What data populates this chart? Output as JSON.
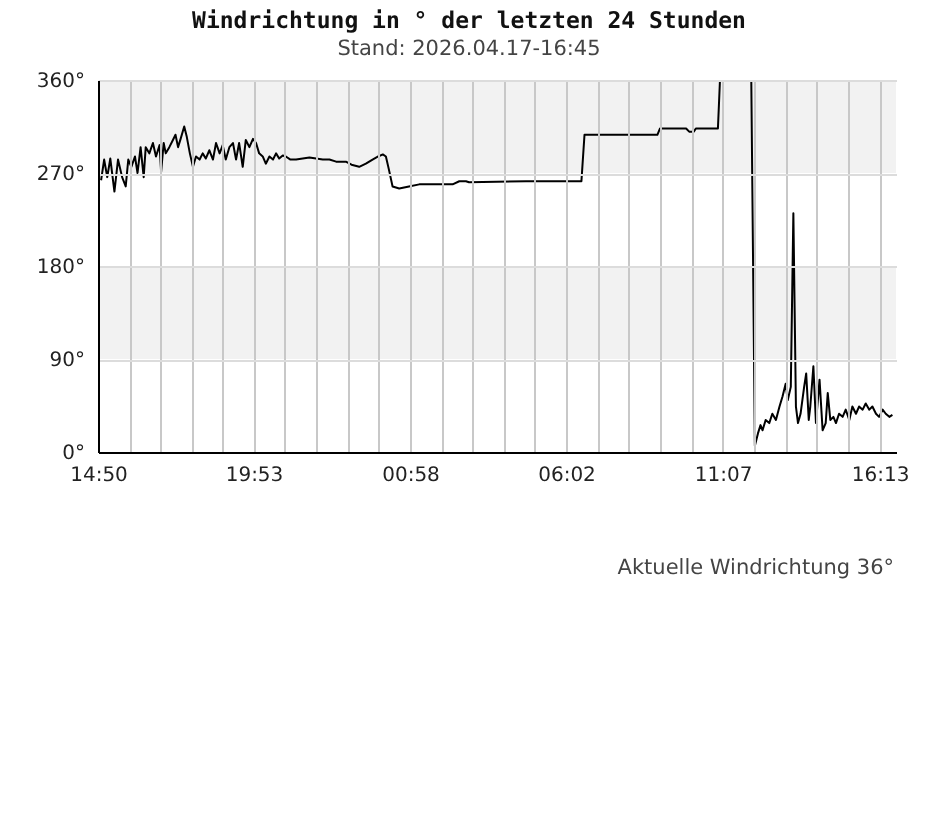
{
  "chart_data": {
    "type": "line",
    "title": "Windrichtung in ° der letzten 24 Stunden",
    "subtitle": "Stand: 2026.04.17-16:45",
    "annotations": [
      "Aktuelle Windrichtung 36°"
    ],
    "xlim": [
      "2026-04-16T14:50",
      "2026-04-17T16:45"
    ],
    "xticks": [
      {
        "value": "2026-04-16T14:50",
        "label": "14:50"
      },
      {
        "value": "2026-04-16T15:51",
        "label": null
      },
      {
        "value": "2026-04-16T16:51",
        "label": null
      },
      {
        "value": "2026-04-16T17:52",
        "label": null
      },
      {
        "value": "2026-04-16T18:52",
        "label": null
      },
      {
        "value": "2026-04-16T19:53",
        "label": "19:53"
      },
      {
        "value": "2026-04-16T20:54",
        "label": null
      },
      {
        "value": "2026-04-16T21:55",
        "label": null
      },
      {
        "value": "2026-04-16T22:56",
        "label": null
      },
      {
        "value": "2026-04-16T23:57",
        "label": null
      },
      {
        "value": "2026-04-17T00:58",
        "label": "00:58"
      },
      {
        "value": "2026-04-17T01:59",
        "label": null
      },
      {
        "value": "2026-04-17T02:59",
        "label": null
      },
      {
        "value": "2026-04-17T04:01",
        "label": null
      },
      {
        "value": "2026-04-17T05:01",
        "label": null
      },
      {
        "value": "2026-04-17T06:02",
        "label": "06:02"
      },
      {
        "value": "2026-04-17T07:03",
        "label": null
      },
      {
        "value": "2026-04-17T08:04",
        "label": null
      },
      {
        "value": "2026-04-17T09:05",
        "label": null
      },
      {
        "value": "2026-04-17T10:06",
        "label": null
      },
      {
        "value": "2026-04-17T11:07",
        "label": "11:07"
      },
      {
        "value": "2026-04-17T12:08",
        "label": null
      },
      {
        "value": "2026-04-17T13:10",
        "label": null
      },
      {
        "value": "2026-04-17T14:11",
        "label": null
      },
      {
        "value": "2026-04-17T15:12",
        "label": null
      },
      {
        "value": "2026-04-17T16:13",
        "label": "16:13"
      }
    ],
    "ylim": [
      0,
      360
    ],
    "yticks": [
      {
        "value": 0,
        "label": "0°"
      },
      {
        "value": 90,
        "label": "90°"
      },
      {
        "value": 180,
        "label": "180°"
      },
      {
        "value": 270,
        "label": "270°"
      },
      {
        "value": 360,
        "label": "360°"
      }
    ],
    "grid": true,
    "bands": [
      {
        "axis": "y",
        "from": 90,
        "to": 180,
        "color": "#f2f2f2"
      },
      {
        "axis": "y",
        "from": 270,
        "to": 360,
        "color": "#f2f2f2"
      }
    ],
    "x": [
      "2026-04-16T14:56",
      "2026-04-16T15:02",
      "2026-04-16T15:08",
      "2026-04-16T15:14",
      "2026-04-16T15:22",
      "2026-04-16T15:29",
      "2026-04-16T15:37",
      "2026-04-16T15:44",
      "2026-04-16T15:49",
      "2026-04-16T15:55",
      "2026-04-16T16:02",
      "2026-04-16T16:07",
      "2026-04-16T16:13",
      "2026-04-16T16:19",
      "2026-04-16T16:23",
      "2026-04-16T16:30",
      "2026-04-16T16:37",
      "2026-04-16T16:43",
      "2026-04-16T16:50",
      "2026-04-16T16:53",
      "2026-04-16T16:58",
      "2026-04-16T17:02",
      "2026-04-16T17:09",
      "2026-04-16T17:16",
      "2026-04-16T17:21",
      "2026-04-16T17:26",
      "2026-04-16T17:31",
      "2026-04-16T17:38",
      "2026-04-16T17:43",
      "2026-04-16T17:49",
      "2026-04-16T17:55",
      "2026-04-16T18:01",
      "2026-04-16T18:08",
      "2026-04-16T18:14",
      "2026-04-16T18:20",
      "2026-04-16T18:27",
      "2026-04-16T18:34",
      "2026-04-16T18:40",
      "2026-04-16T18:47",
      "2026-04-16T18:53",
      "2026-04-16T18:59",
      "2026-04-16T19:06",
      "2026-04-16T19:13",
      "2026-04-16T19:19",
      "2026-04-16T19:25",
      "2026-04-16T19:32",
      "2026-04-16T19:38",
      "2026-04-16T19:45",
      "2026-04-16T19:52",
      "2026-04-16T19:58",
      "2026-04-16T20:04",
      "2026-04-16T20:11",
      "2026-04-16T20:17",
      "2026-04-16T20:24",
      "2026-04-16T20:31",
      "2026-04-16T20:37",
      "2026-04-16T20:43",
      "2026-04-16T20:50",
      "2026-04-16T20:56",
      "2026-04-16T21:05",
      "2026-04-16T21:16",
      "2026-04-16T21:29",
      "2026-04-16T21:42",
      "2026-04-16T21:55",
      "2026-04-16T22:08",
      "2026-04-16T22:21",
      "2026-04-16T22:34",
      "2026-04-16T22:53",
      "2026-04-16T23:04",
      "2026-04-16T23:19",
      "2026-04-16T23:32",
      "2026-04-16T23:45",
      "2026-04-16T23:56",
      "2026-04-17T00:05",
      "2026-04-17T00:11",
      "2026-04-17T00:17",
      "2026-04-17T00:24",
      "2026-04-17T00:37",
      "2026-04-17T00:56",
      "2026-04-17T01:16",
      "2026-04-17T01:42",
      "2026-04-17T02:02",
      "2026-04-17T02:21",
      "2026-04-17T02:34",
      "2026-04-17T02:47",
      "2026-04-17T02:53",
      "2026-04-17T04:44",
      "2026-04-17T06:32",
      "2026-04-17T06:38",
      "2026-04-17T07:59",
      "2026-04-17T09:00",
      "2026-04-17T09:05",
      "2026-04-17T09:56",
      "2026-04-17T10:02",
      "2026-04-17T10:11",
      "2026-04-17T10:15",
      "2026-04-17T10:58",
      "2026-04-17T11:02",
      "2026-04-17T11:30",
      "2026-04-17T12:03",
      "2026-04-17T12:10",
      "2026-04-17T12:16",
      "2026-04-17T12:21",
      "2026-04-17T12:25",
      "2026-04-17T12:31",
      "2026-04-17T12:38",
      "2026-04-17T12:44",
      "2026-04-17T12:51",
      "2026-04-17T12:58",
      "2026-04-17T13:04",
      "2026-04-17T13:10",
      "2026-04-17T13:14",
      "2026-04-17T13:20",
      "2026-04-17T13:25",
      "2026-04-17T13:30",
      "2026-04-17T13:34",
      "2026-04-17T13:39",
      "2026-04-17T13:46",
      "2026-04-17T13:50",
      "2026-04-17T13:55",
      "2026-04-17T13:58",
      "2026-04-17T14:04",
      "2026-04-17T14:09",
      "2026-04-17T14:16",
      "2026-04-17T14:22",
      "2026-04-17T14:28",
      "2026-04-17T14:32",
      "2026-04-17T14:37",
      "2026-04-17T14:43",
      "2026-04-17T14:48",
      "2026-04-17T14:54",
      "2026-04-17T15:01",
      "2026-04-17T15:07",
      "2026-04-17T15:14",
      "2026-04-17T15:20",
      "2026-04-17T15:27",
      "2026-04-17T15:33",
      "2026-04-17T15:40",
      "2026-04-17T15:46",
      "2026-04-17T15:53",
      "2026-04-17T15:59",
      "2026-04-17T16:06",
      "2026-04-17T16:12",
      "2026-04-17T16:19",
      "2026-04-17T16:25",
      "2026-04-17T16:32",
      "2026-04-17T16:38"
    ],
    "series": [
      {
        "color": "#000000",
        "values": [
          263,
          283,
          266,
          284,
          252,
          283,
          266,
          257,
          283,
          276,
          286,
          270,
          295,
          266,
          295,
          289,
          299,
          286,
          297,
          271,
          299,
          289,
          295,
          302,
          307,
          295,
          303,
          315,
          305,
          289,
          276,
          286,
          283,
          289,
          284,
          292,
          283,
          299,
          289,
          297,
          283,
          295,
          299,
          283,
          299,
          276,
          302,
          295,
          303,
          299,
          289,
          286,
          279,
          286,
          283,
          289,
          284,
          287,
          286,
          283,
          283,
          284,
          285,
          284,
          283,
          283,
          281,
          281,
          278,
          276,
          279,
          283,
          286,
          288,
          286,
          273,
          257,
          255,
          257,
          259,
          259,
          259,
          259,
          262,
          262,
          261,
          262,
          262,
          307,
          307,
          307,
          313,
          313,
          310,
          310,
          313,
          313,
          360,
          null,
          360,
          6,
          18,
          26,
          21,
          31,
          28,
          37,
          31,
          44,
          54,
          66,
          50,
          63,
          231,
          44,
          28,
          37,
          63,
          76,
          31,
          44,
          83,
          28,
          70,
          21,
          28,
          57,
          31,
          34,
          28,
          37,
          34,
          41,
          31,
          44,
          37,
          44,
          41,
          47,
          41,
          44,
          37,
          34,
          41,
          37,
          34,
          36
        ]
      }
    ]
  }
}
